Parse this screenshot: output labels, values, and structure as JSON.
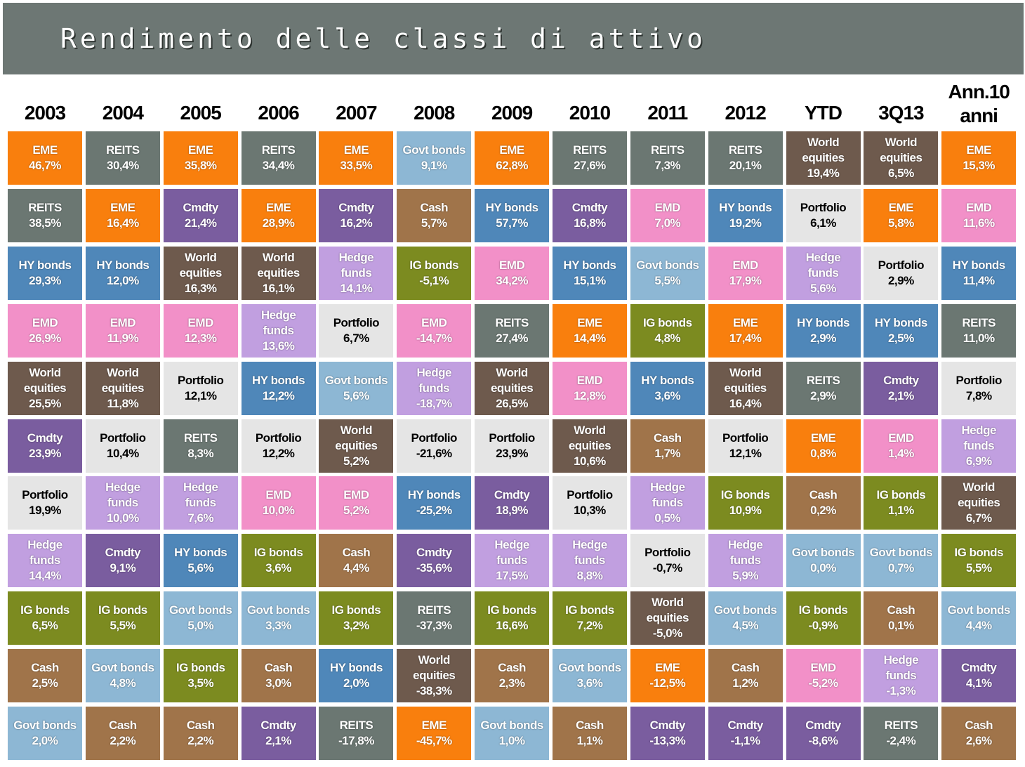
{
  "title": "Rendimento delle classi di attivo",
  "colors": {
    "EME": "#f97f0d",
    "REITS": "#6b7772",
    "Govt bonds": "#8db7d4",
    "World equities": "#6e5a4d",
    "Cmdty": "#7a5d9f",
    "HY bonds": "#4f87b9",
    "EMD": "#f290c8",
    "Hedge funds": "#c19fe0",
    "Portfolio": "#e5e5e5",
    "Cash": "#a0744a",
    "IG bonds": "#7c8b20"
  },
  "chart_data": {
    "type": "table",
    "title": "Rendimento delle classi di attivo",
    "columns": [
      "2003",
      "2004",
      "2005",
      "2006",
      "2007",
      "2008",
      "2009",
      "2010",
      "2011",
      "2012",
      "YTD",
      "3Q13",
      "Ann.10\nanni"
    ],
    "cells": [
      [
        {
          "label": "EME",
          "value": "46,7%"
        },
        {
          "label": "REITS",
          "value": "38,5%"
        },
        {
          "label": "HY bonds",
          "value": "29,3%"
        },
        {
          "label": "EMD",
          "value": "26,9%"
        },
        {
          "label": "World\nequities",
          "value": "25,5%"
        },
        {
          "label": "Cmdty",
          "value": "23,9%"
        },
        {
          "label": "Portfolio",
          "value": "19,9%"
        },
        {
          "label": "Hedge\nfunds",
          "value": "14,4%"
        },
        {
          "label": "IG bonds",
          "value": "6,5%"
        },
        {
          "label": "Cash",
          "value": "2,5%"
        },
        {
          "label": "Govt bonds",
          "value": "2,0%"
        }
      ],
      [
        {
          "label": "REITS",
          "value": "30,4%"
        },
        {
          "label": "EME",
          "value": "16,4%"
        },
        {
          "label": "HY bonds",
          "value": "12,0%"
        },
        {
          "label": "EMD",
          "value": "11,9%"
        },
        {
          "label": "World\nequities",
          "value": "11,8%"
        },
        {
          "label": "Portfolio",
          "value": "10,4%"
        },
        {
          "label": "Hedge\nfunds",
          "value": "10,0%"
        },
        {
          "label": "Cmdty",
          "value": "9,1%"
        },
        {
          "label": "IG bonds",
          "value": "5,5%"
        },
        {
          "label": "Govt bonds",
          "value": "4,8%"
        },
        {
          "label": "Cash",
          "value": "2,2%"
        }
      ],
      [
        {
          "label": "EME",
          "value": "35,8%"
        },
        {
          "label": "Cmdty",
          "value": "21,4%"
        },
        {
          "label": "World\nequities",
          "value": "16,3%"
        },
        {
          "label": "EMD",
          "value": "12,3%"
        },
        {
          "label": "Portfolio",
          "value": "12,1%"
        },
        {
          "label": "REITS",
          "value": "8,3%"
        },
        {
          "label": "Hedge\nfunds",
          "value": "7,6%"
        },
        {
          "label": "HY bonds",
          "value": "5,6%"
        },
        {
          "label": "Govt bonds",
          "value": "5,0%"
        },
        {
          "label": "IG bonds",
          "value": "3,5%"
        },
        {
          "label": "Cash",
          "value": "2,2%"
        }
      ],
      [
        {
          "label": "REITS",
          "value": "34,4%"
        },
        {
          "label": "EME",
          "value": "28,9%"
        },
        {
          "label": "World\nequities",
          "value": "16,1%"
        },
        {
          "label": "Hedge\nfunds",
          "value": "13,6%"
        },
        {
          "label": "HY bonds",
          "value": "12,2%"
        },
        {
          "label": "Portfolio",
          "value": "12,2%"
        },
        {
          "label": "EMD",
          "value": "10,0%"
        },
        {
          "label": "IG bonds",
          "value": "3,6%"
        },
        {
          "label": "Govt bonds",
          "value": "3,3%"
        },
        {
          "label": "Cash",
          "value": "3,0%"
        },
        {
          "label": "Cmdty",
          "value": "2,1%"
        }
      ],
      [
        {
          "label": "EME",
          "value": "33,5%"
        },
        {
          "label": "Cmdty",
          "value": "16,2%"
        },
        {
          "label": "Hedge\nfunds",
          "value": "14,1%"
        },
        {
          "label": "Portfolio",
          "value": "6,7%"
        },
        {
          "label": "Govt bonds",
          "value": "5,6%"
        },
        {
          "label": "World\nequities",
          "value": "5,2%"
        },
        {
          "label": "EMD",
          "value": "5,2%"
        },
        {
          "label": "Cash",
          "value": "4,4%"
        },
        {
          "label": "IG bonds",
          "value": "3,2%"
        },
        {
          "label": "HY bonds",
          "value": "2,0%"
        },
        {
          "label": "REITS",
          "value": "-17,8%"
        }
      ],
      [
        {
          "label": "Govt bonds",
          "value": "9,1%"
        },
        {
          "label": "Cash",
          "value": "5,7%"
        },
        {
          "label": "IG bonds",
          "value": "-5,1%"
        },
        {
          "label": "EMD",
          "value": "-14,7%"
        },
        {
          "label": "Hedge\nfunds",
          "value": "-18,7%"
        },
        {
          "label": "Portfolio",
          "value": "-21,6%"
        },
        {
          "label": "HY bonds",
          "value": "-25,2%"
        },
        {
          "label": "Cmdty",
          "value": "-35,6%"
        },
        {
          "label": "REITS",
          "value": "-37,3%"
        },
        {
          "label": "World\nequities",
          "value": "-38,3%"
        },
        {
          "label": "EME",
          "value": "-45,7%"
        }
      ],
      [
        {
          "label": "EME",
          "value": "62,8%"
        },
        {
          "label": "HY bonds",
          "value": "57,7%"
        },
        {
          "label": "EMD",
          "value": "34,2%"
        },
        {
          "label": "REITS",
          "value": "27,4%"
        },
        {
          "label": "World\nequities",
          "value": "26,5%"
        },
        {
          "label": "Portfolio",
          "value": "23,9%"
        },
        {
          "label": "Cmdty",
          "value": "18,9%"
        },
        {
          "label": "Hedge\nfunds",
          "value": "17,5%"
        },
        {
          "label": "IG bonds",
          "value": "16,6%"
        },
        {
          "label": "Cash",
          "value": "2,3%"
        },
        {
          "label": "Govt bonds",
          "value": "1,0%"
        }
      ],
      [
        {
          "label": "REITS",
          "value": "27,6%"
        },
        {
          "label": "Cmdty",
          "value": "16,8%"
        },
        {
          "label": "HY bonds",
          "value": "15,1%"
        },
        {
          "label": "EME",
          "value": "14,4%"
        },
        {
          "label": "EMD",
          "value": "12,8%"
        },
        {
          "label": "World\nequities",
          "value": "10,6%"
        },
        {
          "label": "Portfolio",
          "value": "10,3%"
        },
        {
          "label": "Hedge\nfunds",
          "value": "8,8%"
        },
        {
          "label": "IG bonds",
          "value": "7,2%"
        },
        {
          "label": "Govt bonds",
          "value": "3,6%"
        },
        {
          "label": "Cash",
          "value": "1,1%"
        }
      ],
      [
        {
          "label": "REITS",
          "value": "7,3%"
        },
        {
          "label": "EMD",
          "value": "7,0%"
        },
        {
          "label": "Govt bonds",
          "value": "5,5%"
        },
        {
          "label": "IG bonds",
          "value": "4,8%"
        },
        {
          "label": "HY bonds",
          "value": "3,6%"
        },
        {
          "label": "Cash",
          "value": "1,7%"
        },
        {
          "label": "Hedge\nfunds",
          "value": "0,5%"
        },
        {
          "label": "Portfolio",
          "value": "-0,7%"
        },
        {
          "label": "World\nequities",
          "value": "-5,0%"
        },
        {
          "label": "EME",
          "value": "-12,5%"
        },
        {
          "label": "Cmdty",
          "value": "-13,3%"
        }
      ],
      [
        {
          "label": "REITS",
          "value": "20,1%"
        },
        {
          "label": "HY bonds",
          "value": "19,2%"
        },
        {
          "label": "EMD",
          "value": "17,9%"
        },
        {
          "label": "EME",
          "value": "17,4%"
        },
        {
          "label": "World\nequities",
          "value": "16,4%"
        },
        {
          "label": "Portfolio",
          "value": "12,1%"
        },
        {
          "label": "IG bonds",
          "value": "10,9%"
        },
        {
          "label": "Hedge\nfunds",
          "value": "5,9%"
        },
        {
          "label": "Govt bonds",
          "value": "4,5%"
        },
        {
          "label": "Cash",
          "value": "1,2%"
        },
        {
          "label": "Cmdty",
          "value": "-1,1%"
        }
      ],
      [
        {
          "label": "World\nequities",
          "value": "19,4%"
        },
        {
          "label": "Portfolio",
          "value": "6,1%"
        },
        {
          "label": "Hedge\nfunds",
          "value": "5,6%"
        },
        {
          "label": "HY bonds",
          "value": "2,9%"
        },
        {
          "label": "REITS",
          "value": "2,9%"
        },
        {
          "label": "EME",
          "value": "0,8%"
        },
        {
          "label": "Cash",
          "value": "0,2%"
        },
        {
          "label": "Govt bonds",
          "value": "0,0%"
        },
        {
          "label": "IG bonds",
          "value": "-0,9%"
        },
        {
          "label": "EMD",
          "value": "-5,2%"
        },
        {
          "label": "Cmdty",
          "value": "-8,6%"
        }
      ],
      [
        {
          "label": "World\nequities",
          "value": "6,5%"
        },
        {
          "label": "EME",
          "value": "5,8%"
        },
        {
          "label": "Portfolio",
          "value": "2,9%"
        },
        {
          "label": "HY bonds",
          "value": "2,5%"
        },
        {
          "label": "Cmdty",
          "value": "2,1%"
        },
        {
          "label": "EMD",
          "value": "1,4%"
        },
        {
          "label": "IG bonds",
          "value": "1,1%"
        },
        {
          "label": "Govt bonds",
          "value": "0,7%"
        },
        {
          "label": "Cash",
          "value": "0,1%"
        },
        {
          "label": "Hedge\nfunds",
          "value": "-1,3%"
        },
        {
          "label": "REITS",
          "value": "-2,4%"
        }
      ],
      [
        {
          "label": "EME",
          "value": "15,3%"
        },
        {
          "label": "EMD",
          "value": "11,6%"
        },
        {
          "label": "HY bonds",
          "value": "11,4%"
        },
        {
          "label": "REITS",
          "value": "11,0%"
        },
        {
          "label": "Portfolio",
          "value": "7,8%"
        },
        {
          "label": "Hedge\nfunds",
          "value": "6,9%"
        },
        {
          "label": "World\nequities",
          "value": "6,7%"
        },
        {
          "label": "IG bonds",
          "value": "5,5%"
        },
        {
          "label": "Govt bonds",
          "value": "4,4%"
        },
        {
          "label": "Cmdty",
          "value": "4,1%"
        },
        {
          "label": "Cash",
          "value": "2,6%"
        }
      ]
    ]
  }
}
